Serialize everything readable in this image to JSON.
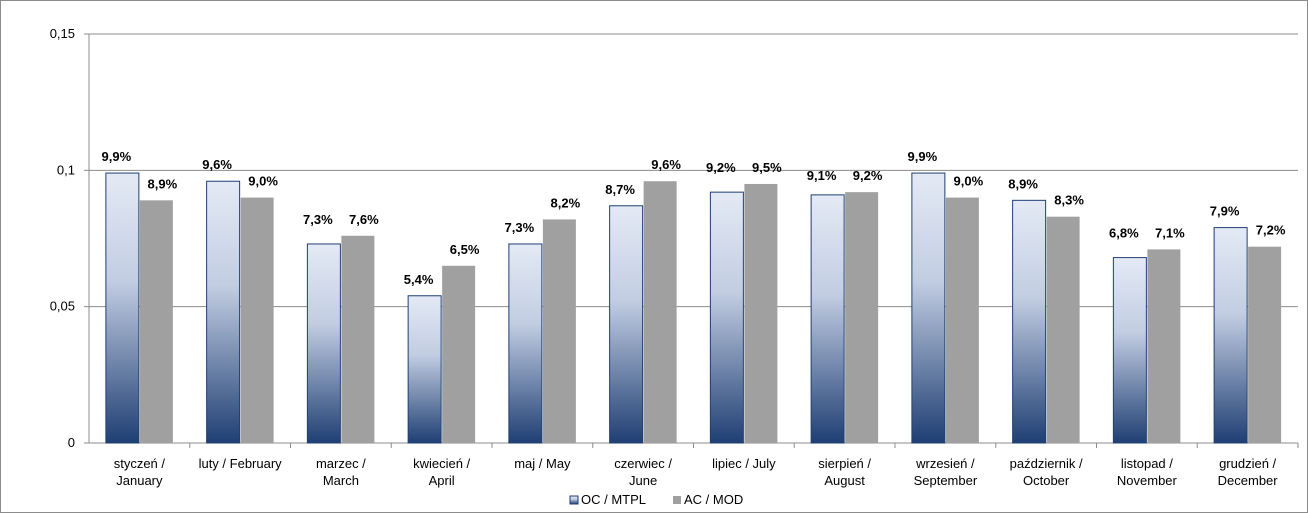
{
  "chart_data": {
    "type": "bar",
    "categories": [
      [
        "styczeń /",
        "January"
      ],
      [
        "luty / February"
      ],
      [
        "marzec /",
        "March"
      ],
      [
        "kwiecień /",
        "April"
      ],
      [
        "maj / May"
      ],
      [
        "czerwiec /",
        "June"
      ],
      [
        "lipiec / July"
      ],
      [
        "sierpień /",
        "August"
      ],
      [
        "wrzesień /",
        "September"
      ],
      [
        "październik /",
        "October"
      ],
      [
        "listopad /",
        "November"
      ],
      [
        "grudzień /",
        "December"
      ]
    ],
    "series": [
      {
        "name": "OC / MTPL",
        "values": [
          0.099,
          0.096,
          0.073,
          0.054,
          0.073,
          0.087,
          0.092,
          0.091,
          0.099,
          0.089,
          0.068,
          0.079
        ],
        "labels": [
          "9,9%",
          "9,6%",
          "7,3%",
          "5,4%",
          "7,3%",
          "8,7%",
          "9,2%",
          "9,1%",
          "9,9%",
          "8,9%",
          "6,8%",
          "7,9%"
        ],
        "color_top": "#e4eaf5",
        "color_bottom": "#1f3f73",
        "border": "#1f3f73"
      },
      {
        "name": "AC / MOD",
        "values": [
          0.089,
          0.09,
          0.076,
          0.065,
          0.082,
          0.096,
          0.095,
          0.092,
          0.09,
          0.083,
          0.071,
          0.072
        ],
        "labels": [
          "8,9%",
          "9,0%",
          "7,6%",
          "6,5%",
          "8,2%",
          "9,6%",
          "9,5%",
          "9,2%",
          "9,0%",
          "8,3%",
          "7,1%",
          "7,2%"
        ],
        "color": "#a0a0a0"
      }
    ],
    "yticks": [
      "0",
      "0,05",
      "0,1",
      "0,15"
    ],
    "ytick_values": [
      0,
      0.05,
      0.1,
      0.15
    ],
    "ylim": [
      0,
      0.15
    ],
    "grid": true,
    "legend_position": "bottom"
  }
}
